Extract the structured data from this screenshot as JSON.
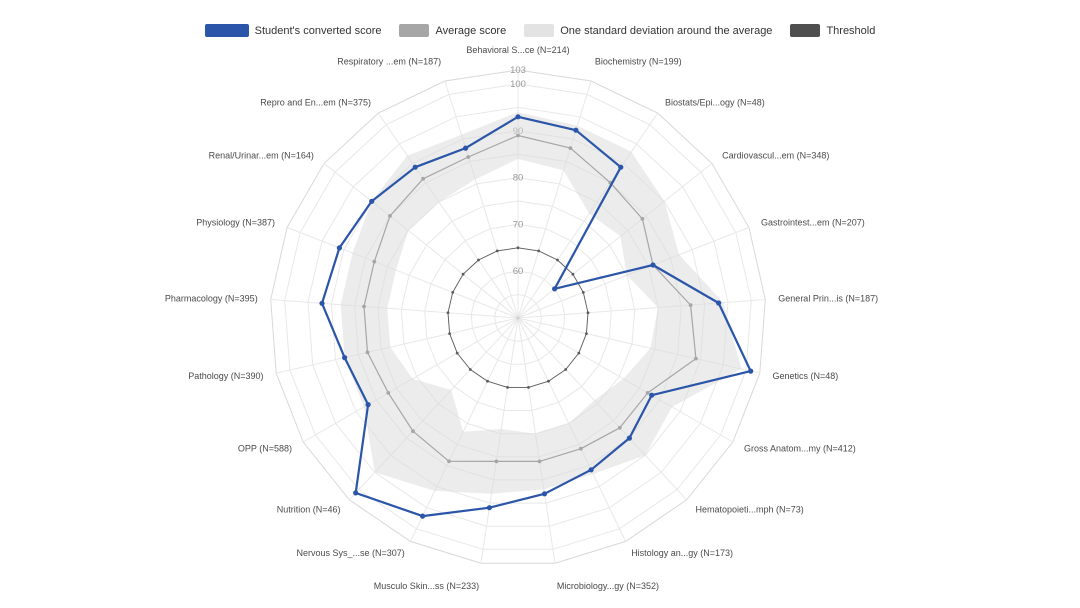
{
  "legend": {
    "items": [
      {
        "id": "student",
        "label": "Student's converted score",
        "color": "#2b55a8"
      },
      {
        "id": "average",
        "label": "Average score",
        "color": "#a6a6a6"
      },
      {
        "id": "band",
        "label": "One standard deviation around the average",
        "color": "#e3e3e3"
      },
      {
        "id": "threshold",
        "label": "Threshold",
        "color": "#4f4f4f"
      }
    ]
  },
  "chart_data": {
    "type": "radar",
    "title": "",
    "legend_position": "top",
    "grid": "on",
    "radial_axis": {
      "min": 50,
      "max": 103,
      "tick_values": [
        60,
        70,
        80,
        90,
        100,
        103
      ],
      "grid_rings": [
        55,
        60,
        65,
        70,
        75,
        80,
        85,
        90,
        95,
        100,
        103
      ]
    },
    "categories": [
      "Behavioral S...ce (N=214)",
      "Biochemistry (N=199)",
      "Biostats/Epi...ogy (N=48)",
      "Cardiovascul...em (N=348)",
      "Gastrointest...em (N=207)",
      "General Prin...is (N=187)",
      "Genetics (N=48)",
      "Gross Anatom...my (N=412)",
      "Hematopoieti...mph (N=73)",
      "Histology an...gy (N=173)",
      "Microbiology...gy (N=352)",
      "Musculo Skin...ss (N=233)",
      "Nervous Sys_...se (N=307)",
      "Nutrition (N=46)",
      "OPP (N=588)",
      "Pathology (N=390)",
      "Pharmacology (N=395)",
      "Physiology (N=387)",
      "Renal/Urinar...em (N=164)",
      "Repro and En...em (N=375)",
      "Respiratory ...em (N=187)"
    ],
    "series": [
      {
        "name": "Student's converted score",
        "color": "#2b55a8",
        "values": [
          93,
          92,
          89,
          60,
          81,
          93,
          101,
          83,
          85,
          86,
          88,
          91,
          97,
          101,
          87,
          88,
          92,
          91,
          90,
          89,
          88
        ]
      },
      {
        "name": "Average score",
        "color": "#a6a6a6",
        "values": [
          89,
          88,
          85,
          84,
          81,
          87,
          89,
          82,
          82,
          81,
          81,
          81,
          84,
          83,
          82,
          83,
          83,
          83,
          85,
          86,
          86
        ]
      },
      {
        "name": "Threshold",
        "color": "#5c5c5c",
        "values": [
          65,
          65,
          65,
          65,
          65,
          65,
          65,
          65,
          65,
          65,
          65,
          65,
          65,
          65,
          65,
          65,
          65,
          65,
          65,
          65,
          65
        ]
      }
    ],
    "band": {
      "name": "One standard deviation around the average",
      "color": "#d9d9d9",
      "center_series": "Average score",
      "std": [
        5,
        5,
        8,
        6,
        6,
        7,
        10,
        6,
        8,
        6,
        6,
        7,
        7,
        12,
        6,
        5,
        5,
        5,
        5,
        6,
        5
      ]
    }
  }
}
